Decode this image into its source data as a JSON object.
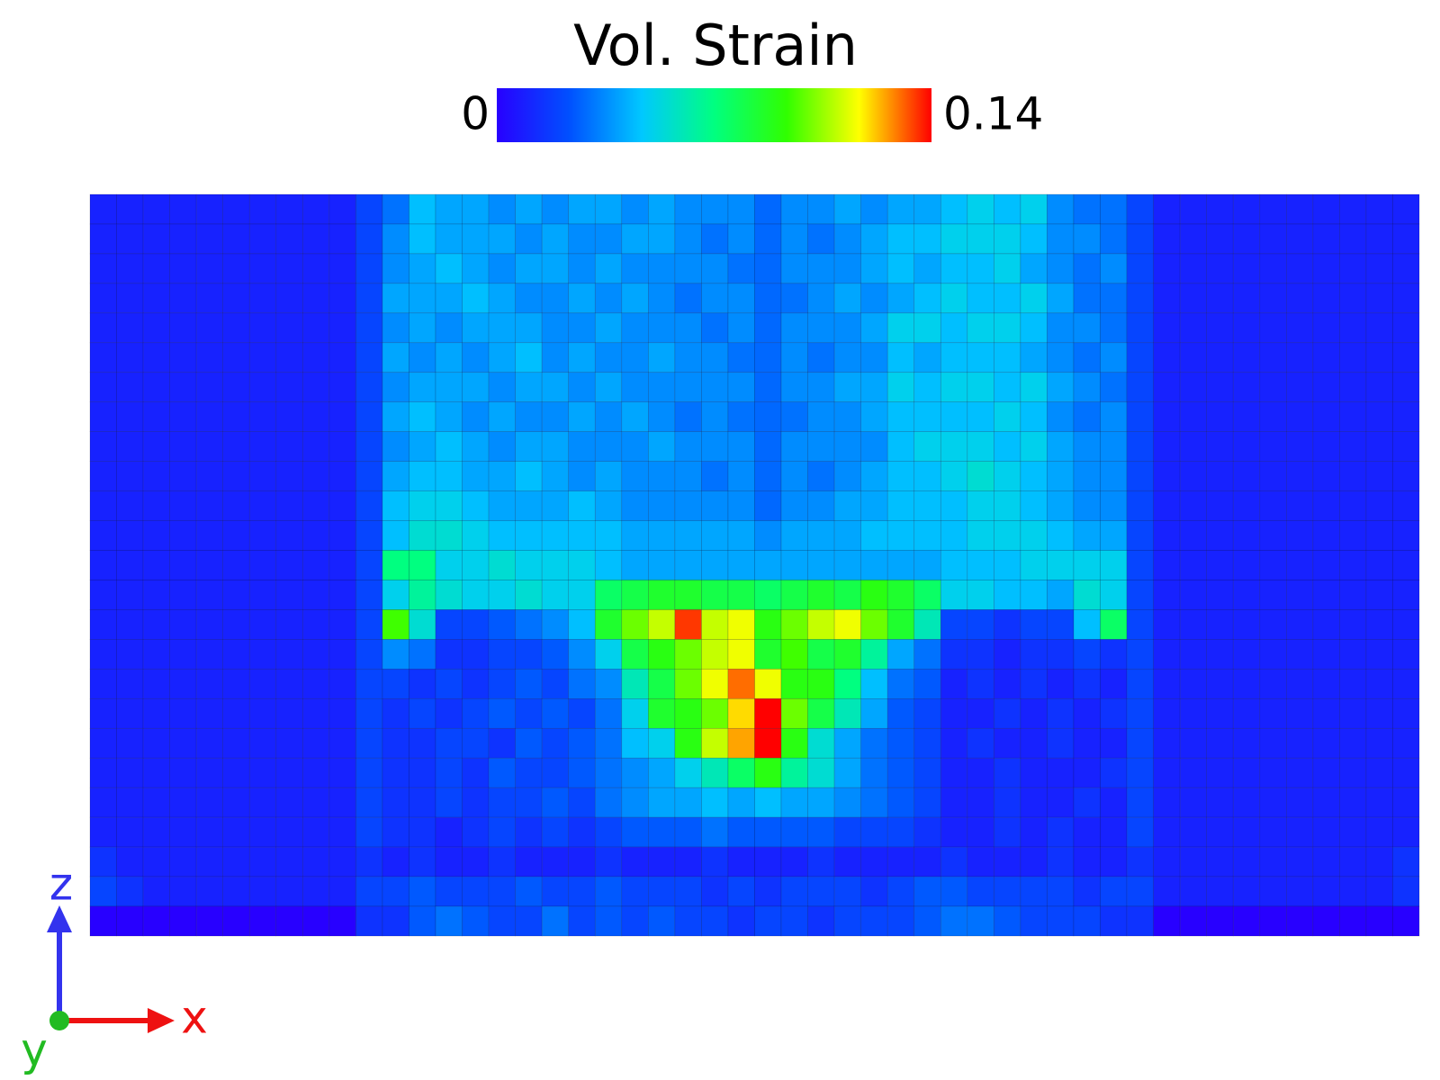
{
  "chart_data": {
    "type": "heatmap",
    "title": "Vol. Strain",
    "vlim": [
      0,
      0.14
    ],
    "colormap": [
      "#2800ff",
      "#0050ff",
      "#00c8ff",
      "#00ff80",
      "#30ff00",
      "#ffff00",
      "#ff0000"
    ],
    "axis_labels": {
      "z": "z",
      "x": "x",
      "y": "y"
    },
    "values": [
      [
        0.01,
        0.01,
        0.01,
        0.01,
        0.01,
        0.01,
        0.01,
        0.01,
        0.01,
        0.01,
        0.02,
        0.03,
        0.045,
        0.04,
        0.04,
        0.035,
        0.04,
        0.035,
        0.04,
        0.04,
        0.035,
        0.04,
        0.035,
        0.035,
        0.035,
        0.028,
        0.035,
        0.035,
        0.04,
        0.035,
        0.04,
        0.04,
        0.045,
        0.05,
        0.045,
        0.05,
        0.035,
        0.03,
        0.03,
        0.02,
        0.01,
        0.01,
        0.01,
        0.01,
        0.01,
        0.01,
        0.01,
        0.01,
        0.01,
        0.01
      ],
      [
        0.01,
        0.01,
        0.01,
        0.01,
        0.01,
        0.01,
        0.01,
        0.01,
        0.01,
        0.01,
        0.02,
        0.035,
        0.045,
        0.04,
        0.04,
        0.04,
        0.035,
        0.04,
        0.035,
        0.035,
        0.04,
        0.04,
        0.035,
        0.03,
        0.035,
        0.028,
        0.035,
        0.03,
        0.035,
        0.04,
        0.045,
        0.045,
        0.05,
        0.05,
        0.05,
        0.045,
        0.035,
        0.035,
        0.03,
        0.02,
        0.01,
        0.01,
        0.01,
        0.01,
        0.01,
        0.01,
        0.01,
        0.01,
        0.01,
        0.01
      ],
      [
        0.01,
        0.01,
        0.01,
        0.01,
        0.01,
        0.01,
        0.01,
        0.01,
        0.01,
        0.01,
        0.02,
        0.035,
        0.04,
        0.045,
        0.04,
        0.035,
        0.04,
        0.04,
        0.035,
        0.04,
        0.035,
        0.035,
        0.035,
        0.035,
        0.03,
        0.028,
        0.035,
        0.035,
        0.035,
        0.04,
        0.045,
        0.04,
        0.045,
        0.045,
        0.05,
        0.04,
        0.035,
        0.03,
        0.035,
        0.02,
        0.01,
        0.01,
        0.01,
        0.01,
        0.01,
        0.01,
        0.01,
        0.01,
        0.01,
        0.01
      ],
      [
        0.01,
        0.01,
        0.01,
        0.01,
        0.01,
        0.01,
        0.01,
        0.01,
        0.01,
        0.01,
        0.02,
        0.04,
        0.04,
        0.04,
        0.045,
        0.04,
        0.035,
        0.035,
        0.04,
        0.035,
        0.04,
        0.035,
        0.03,
        0.035,
        0.035,
        0.028,
        0.03,
        0.035,
        0.04,
        0.035,
        0.04,
        0.045,
        0.05,
        0.045,
        0.045,
        0.05,
        0.04,
        0.03,
        0.03,
        0.02,
        0.01,
        0.01,
        0.01,
        0.01,
        0.01,
        0.01,
        0.01,
        0.01,
        0.01,
        0.01
      ],
      [
        0.01,
        0.01,
        0.01,
        0.01,
        0.01,
        0.01,
        0.01,
        0.01,
        0.01,
        0.01,
        0.02,
        0.035,
        0.04,
        0.035,
        0.04,
        0.04,
        0.04,
        0.035,
        0.035,
        0.04,
        0.035,
        0.035,
        0.035,
        0.03,
        0.035,
        0.028,
        0.035,
        0.035,
        0.035,
        0.04,
        0.05,
        0.05,
        0.045,
        0.05,
        0.05,
        0.045,
        0.035,
        0.035,
        0.03,
        0.02,
        0.01,
        0.01,
        0.01,
        0.01,
        0.01,
        0.01,
        0.01,
        0.01,
        0.01,
        0.01
      ],
      [
        0.01,
        0.01,
        0.01,
        0.01,
        0.01,
        0.01,
        0.01,
        0.01,
        0.01,
        0.01,
        0.02,
        0.04,
        0.035,
        0.04,
        0.035,
        0.04,
        0.045,
        0.035,
        0.04,
        0.035,
        0.035,
        0.04,
        0.035,
        0.035,
        0.03,
        0.028,
        0.035,
        0.03,
        0.035,
        0.035,
        0.045,
        0.04,
        0.045,
        0.045,
        0.045,
        0.04,
        0.035,
        0.03,
        0.035,
        0.02,
        0.01,
        0.01,
        0.01,
        0.01,
        0.01,
        0.01,
        0.01,
        0.01,
        0.01,
        0.01
      ],
      [
        0.01,
        0.01,
        0.01,
        0.01,
        0.01,
        0.01,
        0.01,
        0.01,
        0.01,
        0.01,
        0.02,
        0.035,
        0.04,
        0.04,
        0.04,
        0.035,
        0.04,
        0.04,
        0.035,
        0.04,
        0.035,
        0.035,
        0.035,
        0.035,
        0.035,
        0.028,
        0.035,
        0.035,
        0.04,
        0.04,
        0.05,
        0.045,
        0.05,
        0.05,
        0.045,
        0.05,
        0.04,
        0.035,
        0.03,
        0.02,
        0.01,
        0.01,
        0.01,
        0.01,
        0.01,
        0.01,
        0.01,
        0.01,
        0.01,
        0.01
      ],
      [
        0.01,
        0.01,
        0.01,
        0.01,
        0.01,
        0.01,
        0.01,
        0.01,
        0.01,
        0.01,
        0.02,
        0.04,
        0.045,
        0.04,
        0.035,
        0.04,
        0.035,
        0.035,
        0.04,
        0.035,
        0.04,
        0.035,
        0.03,
        0.035,
        0.03,
        0.028,
        0.03,
        0.035,
        0.035,
        0.04,
        0.045,
        0.045,
        0.045,
        0.045,
        0.05,
        0.045,
        0.035,
        0.03,
        0.035,
        0.02,
        0.01,
        0.01,
        0.01,
        0.01,
        0.01,
        0.01,
        0.01,
        0.01,
        0.01,
        0.01
      ],
      [
        0.01,
        0.01,
        0.01,
        0.01,
        0.01,
        0.01,
        0.01,
        0.01,
        0.01,
        0.01,
        0.02,
        0.035,
        0.04,
        0.045,
        0.04,
        0.035,
        0.04,
        0.04,
        0.035,
        0.035,
        0.035,
        0.04,
        0.035,
        0.035,
        0.035,
        0.028,
        0.035,
        0.035,
        0.035,
        0.035,
        0.045,
        0.05,
        0.05,
        0.05,
        0.045,
        0.05,
        0.04,
        0.035,
        0.035,
        0.02,
        0.01,
        0.01,
        0.01,
        0.01,
        0.01,
        0.01,
        0.01,
        0.01,
        0.01,
        0.01
      ],
      [
        0.01,
        0.01,
        0.01,
        0.01,
        0.01,
        0.01,
        0.01,
        0.01,
        0.01,
        0.01,
        0.02,
        0.04,
        0.045,
        0.045,
        0.04,
        0.04,
        0.045,
        0.04,
        0.035,
        0.04,
        0.035,
        0.035,
        0.035,
        0.03,
        0.035,
        0.028,
        0.035,
        0.03,
        0.035,
        0.04,
        0.045,
        0.045,
        0.05,
        0.055,
        0.05,
        0.045,
        0.04,
        0.035,
        0.035,
        0.02,
        0.01,
        0.01,
        0.01,
        0.01,
        0.01,
        0.01,
        0.01,
        0.01,
        0.01,
        0.01
      ],
      [
        0.01,
        0.01,
        0.01,
        0.01,
        0.01,
        0.01,
        0.01,
        0.01,
        0.01,
        0.01,
        0.02,
        0.045,
        0.05,
        0.05,
        0.045,
        0.04,
        0.04,
        0.04,
        0.045,
        0.04,
        0.035,
        0.035,
        0.035,
        0.035,
        0.035,
        0.028,
        0.035,
        0.035,
        0.04,
        0.04,
        0.045,
        0.045,
        0.045,
        0.05,
        0.05,
        0.045,
        0.04,
        0.035,
        0.035,
        0.02,
        0.01,
        0.01,
        0.01,
        0.01,
        0.01,
        0.01,
        0.01,
        0.01,
        0.01,
        0.01
      ],
      [
        0.01,
        0.01,
        0.01,
        0.01,
        0.01,
        0.01,
        0.01,
        0.01,
        0.01,
        0.01,
        0.02,
        0.045,
        0.055,
        0.055,
        0.05,
        0.045,
        0.045,
        0.045,
        0.045,
        0.045,
        0.04,
        0.04,
        0.04,
        0.04,
        0.04,
        0.035,
        0.04,
        0.04,
        0.04,
        0.045,
        0.045,
        0.045,
        0.045,
        0.05,
        0.05,
        0.05,
        0.045,
        0.04,
        0.04,
        0.02,
        0.01,
        0.01,
        0.01,
        0.01,
        0.01,
        0.01,
        0.01,
        0.01,
        0.01,
        0.01
      ],
      [
        0.01,
        0.01,
        0.01,
        0.01,
        0.01,
        0.01,
        0.01,
        0.01,
        0.01,
        0.01,
        0.02,
        0.07,
        0.07,
        0.05,
        0.05,
        0.055,
        0.05,
        0.05,
        0.05,
        0.045,
        0.04,
        0.04,
        0.04,
        0.04,
        0.04,
        0.04,
        0.04,
        0.04,
        0.04,
        0.04,
        0.04,
        0.04,
        0.045,
        0.045,
        0.045,
        0.05,
        0.05,
        0.05,
        0.05,
        0.02,
        0.01,
        0.01,
        0.01,
        0.01,
        0.01,
        0.01,
        0.01,
        0.01,
        0.01,
        0.01
      ],
      [
        0.01,
        0.01,
        0.01,
        0.01,
        0.01,
        0.01,
        0.01,
        0.01,
        0.01,
        0.01,
        0.02,
        0.05,
        0.065,
        0.055,
        0.05,
        0.05,
        0.055,
        0.05,
        0.05,
        0.075,
        0.08,
        0.085,
        0.085,
        0.08,
        0.08,
        0.075,
        0.08,
        0.085,
        0.08,
        0.09,
        0.085,
        0.075,
        0.05,
        0.05,
        0.045,
        0.045,
        0.04,
        0.055,
        0.05,
        0.02,
        0.01,
        0.01,
        0.01,
        0.01,
        0.01,
        0.01,
        0.01,
        0.01,
        0.01,
        0.01
      ],
      [
        0.01,
        0.01,
        0.01,
        0.01,
        0.01,
        0.01,
        0.01,
        0.01,
        0.01,
        0.01,
        0.02,
        0.095,
        0.055,
        0.02,
        0.02,
        0.025,
        0.03,
        0.035,
        0.045,
        0.085,
        0.1,
        0.11,
        0.135,
        0.11,
        0.115,
        0.09,
        0.1,
        0.11,
        0.115,
        0.1,
        0.085,
        0.06,
        0.02,
        0.02,
        0.015,
        0.02,
        0.02,
        0.045,
        0.075,
        0.02,
        0.01,
        0.01,
        0.01,
        0.01,
        0.01,
        0.01,
        0.01,
        0.01,
        0.01,
        0.01
      ],
      [
        0.01,
        0.01,
        0.01,
        0.01,
        0.01,
        0.01,
        0.01,
        0.01,
        0.01,
        0.01,
        0.02,
        0.035,
        0.03,
        0.015,
        0.015,
        0.02,
        0.02,
        0.025,
        0.035,
        0.05,
        0.08,
        0.09,
        0.1,
        0.11,
        0.115,
        0.085,
        0.095,
        0.08,
        0.085,
        0.065,
        0.04,
        0.03,
        0.015,
        0.015,
        0.01,
        0.015,
        0.015,
        0.02,
        0.015,
        0.02,
        0.01,
        0.01,
        0.01,
        0.01,
        0.01,
        0.01,
        0.01,
        0.01,
        0.01,
        0.01
      ],
      [
        0.01,
        0.01,
        0.01,
        0.01,
        0.01,
        0.01,
        0.01,
        0.01,
        0.01,
        0.01,
        0.02,
        0.02,
        0.015,
        0.02,
        0.015,
        0.02,
        0.025,
        0.02,
        0.03,
        0.035,
        0.06,
        0.08,
        0.1,
        0.115,
        0.13,
        0.115,
        0.09,
        0.09,
        0.07,
        0.045,
        0.03,
        0.025,
        0.01,
        0.015,
        0.01,
        0.015,
        0.01,
        0.015,
        0.01,
        0.02,
        0.01,
        0.01,
        0.01,
        0.01,
        0.01,
        0.01,
        0.01,
        0.01,
        0.01,
        0.01
      ],
      [
        0.01,
        0.01,
        0.01,
        0.01,
        0.01,
        0.01,
        0.01,
        0.01,
        0.01,
        0.01,
        0.02,
        0.015,
        0.02,
        0.015,
        0.02,
        0.025,
        0.02,
        0.025,
        0.02,
        0.03,
        0.05,
        0.085,
        0.09,
        0.1,
        0.12,
        0.14,
        0.1,
        0.08,
        0.06,
        0.04,
        0.025,
        0.02,
        0.01,
        0.01,
        0.015,
        0.01,
        0.015,
        0.01,
        0.015,
        0.02,
        0.01,
        0.01,
        0.01,
        0.01,
        0.01,
        0.01,
        0.01,
        0.01,
        0.01,
        0.01
      ],
      [
        0.01,
        0.01,
        0.01,
        0.01,
        0.01,
        0.01,
        0.01,
        0.01,
        0.01,
        0.01,
        0.02,
        0.015,
        0.015,
        0.02,
        0.02,
        0.015,
        0.025,
        0.02,
        0.025,
        0.03,
        0.045,
        0.05,
        0.09,
        0.11,
        0.125,
        0.14,
        0.09,
        0.055,
        0.04,
        0.03,
        0.025,
        0.02,
        0.01,
        0.015,
        0.01,
        0.01,
        0.015,
        0.01,
        0.01,
        0.02,
        0.01,
        0.01,
        0.01,
        0.01,
        0.01,
        0.01,
        0.01,
        0.01,
        0.01,
        0.01
      ],
      [
        0.01,
        0.01,
        0.01,
        0.01,
        0.01,
        0.01,
        0.01,
        0.01,
        0.01,
        0.01,
        0.02,
        0.015,
        0.015,
        0.02,
        0.015,
        0.025,
        0.02,
        0.02,
        0.025,
        0.03,
        0.035,
        0.04,
        0.05,
        0.06,
        0.075,
        0.09,
        0.065,
        0.055,
        0.04,
        0.03,
        0.025,
        0.02,
        0.01,
        0.01,
        0.015,
        0.01,
        0.01,
        0.01,
        0.015,
        0.02,
        0.01,
        0.01,
        0.01,
        0.01,
        0.01,
        0.01,
        0.01,
        0.01,
        0.01,
        0.01
      ],
      [
        0.01,
        0.01,
        0.01,
        0.01,
        0.01,
        0.01,
        0.01,
        0.01,
        0.01,
        0.01,
        0.02,
        0.015,
        0.015,
        0.02,
        0.015,
        0.02,
        0.02,
        0.025,
        0.02,
        0.03,
        0.035,
        0.04,
        0.04,
        0.045,
        0.04,
        0.045,
        0.04,
        0.04,
        0.035,
        0.03,
        0.025,
        0.02,
        0.01,
        0.01,
        0.015,
        0.01,
        0.01,
        0.015,
        0.01,
        0.02,
        0.01,
        0.01,
        0.01,
        0.01,
        0.01,
        0.01,
        0.01,
        0.01,
        0.01,
        0.01
      ],
      [
        0.01,
        0.01,
        0.01,
        0.01,
        0.01,
        0.01,
        0.01,
        0.01,
        0.01,
        0.01,
        0.02,
        0.015,
        0.015,
        0.01,
        0.015,
        0.02,
        0.015,
        0.02,
        0.015,
        0.02,
        0.025,
        0.025,
        0.025,
        0.03,
        0.025,
        0.025,
        0.025,
        0.025,
        0.02,
        0.02,
        0.02,
        0.015,
        0.01,
        0.01,
        0.015,
        0.01,
        0.015,
        0.01,
        0.01,
        0.02,
        0.01,
        0.01,
        0.01,
        0.01,
        0.01,
        0.01,
        0.01,
        0.01,
        0.01,
        0.01
      ],
      [
        0.015,
        0.01,
        0.01,
        0.01,
        0.01,
        0.01,
        0.01,
        0.01,
        0.01,
        0.01,
        0.015,
        0.01,
        0.015,
        0.01,
        0.01,
        0.015,
        0.01,
        0.01,
        0.01,
        0.015,
        0.01,
        0.01,
        0.01,
        0.015,
        0.01,
        0.01,
        0.01,
        0.015,
        0.01,
        0.01,
        0.01,
        0.01,
        0.015,
        0.01,
        0.01,
        0.01,
        0.015,
        0.01,
        0.01,
        0.015,
        0.01,
        0.01,
        0.01,
        0.01,
        0.01,
        0.01,
        0.01,
        0.01,
        0.01,
        0.015
      ],
      [
        0.02,
        0.015,
        0.01,
        0.01,
        0.01,
        0.01,
        0.01,
        0.01,
        0.01,
        0.01,
        0.02,
        0.02,
        0.025,
        0.02,
        0.02,
        0.02,
        0.025,
        0.02,
        0.02,
        0.025,
        0.02,
        0.02,
        0.02,
        0.015,
        0.02,
        0.015,
        0.02,
        0.02,
        0.02,
        0.015,
        0.02,
        0.025,
        0.025,
        0.02,
        0.02,
        0.02,
        0.02,
        0.015,
        0.02,
        0.02,
        0.01,
        0.01,
        0.01,
        0.01,
        0.01,
        0.01,
        0.01,
        0.01,
        0.01,
        0.015
      ],
      [
        0,
        0,
        0,
        0,
        0,
        0,
        0,
        0,
        0,
        0,
        0.015,
        0.015,
        0.025,
        0.03,
        0.025,
        0.02,
        0.02,
        0.03,
        0.02,
        0.025,
        0.02,
        0.025,
        0.02,
        0.02,
        0.015,
        0.02,
        0.02,
        0.015,
        0.02,
        0.02,
        0.02,
        0.025,
        0.03,
        0.03,
        0.025,
        0.02,
        0.02,
        0.02,
        0.015,
        0.015,
        0,
        0,
        0,
        0,
        0,
        0,
        0,
        0,
        0,
        0
      ]
    ]
  }
}
